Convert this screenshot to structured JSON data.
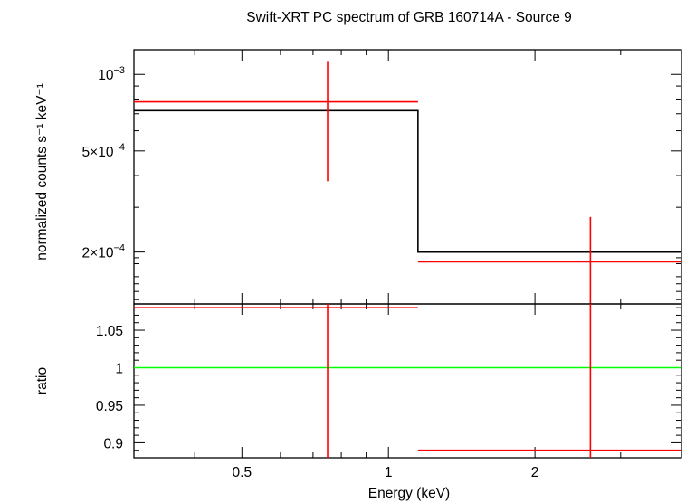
{
  "chart_data": [
    {
      "type": "line",
      "panel": "spectrum",
      "title": "Swift-XRT PC spectrum of GRB 160714A - Source 9",
      "xlabel": "Energy (keV)",
      "ylabel": "normalized counts s⁻¹ keV⁻¹",
      "x_scale": "log",
      "y_scale": "log",
      "xlim": [
        0.3,
        4.0
      ],
      "ylim": [
        0.000125,
        0.00125
      ],
      "x_ticks": [
        {
          "value": 0.5,
          "label": "0.5"
        },
        {
          "value": 1,
          "label": "1"
        },
        {
          "value": 2,
          "label": "2"
        }
      ],
      "y_ticks": [
        {
          "value": 0.001,
          "base": "10",
          "exp": "−3"
        },
        {
          "value": 0.0005,
          "base": "5×10",
          "exp": "−4"
        },
        {
          "value": 0.0002,
          "base": "2×10",
          "exp": "−4"
        }
      ],
      "series": [
        {
          "color": "#ff0000",
          "style": "errorbars",
          "points": [
            {
              "x": 0.75,
              "xlo": 0.3,
              "xhi": 1.15,
              "y": 0.00078,
              "ylo": 0.00038,
              "yhi": 0.00113
            },
            {
              "x": 2.6,
              "xlo": 1.15,
              "xhi": 4.0,
              "y": 0.000183,
              "ylo": 7.5e-05,
              "yhi": 0.000275
            }
          ]
        },
        {
          "color": "#000000",
          "style": "step",
          "bins": [
            {
              "xlo": 0.3,
              "xhi": 1.15,
              "y": 0.00072
            },
            {
              "xlo": 1.15,
              "xhi": 4.0,
              "y": 0.0002
            }
          ]
        }
      ]
    },
    {
      "type": "line",
      "panel": "ratio",
      "xlabel": "Energy (keV)",
      "ylabel": "ratio",
      "x_scale": "log",
      "xlim": [
        0.3,
        4.0
      ],
      "ylim": [
        0.88,
        1.085
      ],
      "y_ticks": [
        {
          "value": 1.05,
          "label": "1.05"
        },
        {
          "value": 1.0,
          "label": "1"
        },
        {
          "value": 0.95,
          "label": "0.95"
        },
        {
          "value": 0.9,
          "label": "0.9"
        }
      ],
      "reference_line": {
        "y": 1.0,
        "color": "#00ff00"
      },
      "series": [
        {
          "color": "#ff0000",
          "style": "errorbars",
          "points": [
            {
              "x": 0.75,
              "xlo": 0.3,
              "xhi": 1.15,
              "y": 1.08,
              "ylo": 0.6,
              "yhi": 1.6
            },
            {
              "x": 2.6,
              "xlo": 1.15,
              "xhi": 4.0,
              "y": 0.89,
              "ylo": 0.5,
              "yhi": 1.5
            }
          ]
        }
      ]
    }
  ]
}
